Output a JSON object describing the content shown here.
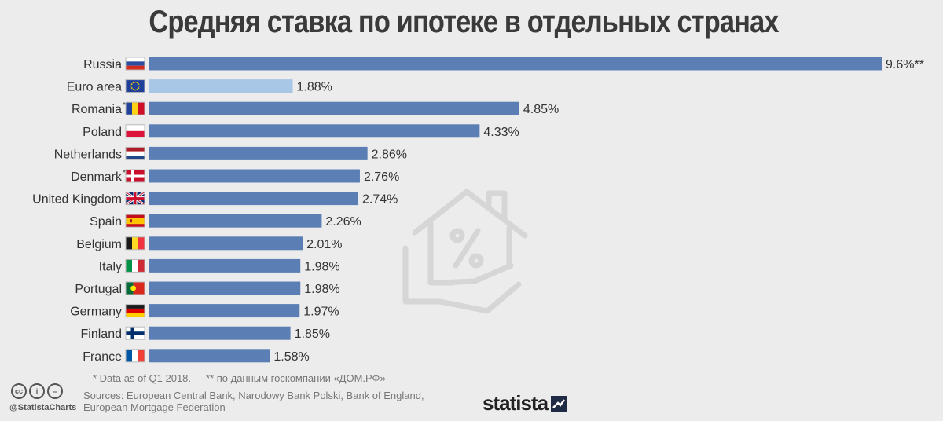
{
  "chart_data": {
    "type": "bar",
    "orientation": "horizontal",
    "title": "Средняя ставка по ипотеке в отдельных странах",
    "categories": [
      "Russia",
      "Euro area",
      "Romania",
      "Poland",
      "Netherlands",
      "Denmark",
      "United Kingdom",
      "Spain",
      "Belgium",
      "Italy",
      "Portugal",
      "Germany",
      "Finland",
      "France"
    ],
    "category_marks": [
      "",
      "",
      "*",
      "",
      "",
      "*",
      "",
      "",
      "",
      "",
      "",
      "",
      "",
      ""
    ],
    "values": [
      9.6,
      1.88,
      4.85,
      4.33,
      2.86,
      2.76,
      2.74,
      2.26,
      2.01,
      1.98,
      1.98,
      1.97,
      1.85,
      1.58
    ],
    "value_labels": [
      "9.6%**",
      "1.88%",
      "4.85%",
      "4.33%",
      "2.86%",
      "2.76%",
      "2.74%",
      "2.26%",
      "2.01%",
      "1.98%",
      "1.98%",
      "1.97%",
      "1.85%",
      "1.58%"
    ],
    "highlight": [
      false,
      true,
      false,
      false,
      false,
      false,
      false,
      false,
      false,
      false,
      false,
      false,
      false,
      false
    ],
    "flag_icons": [
      "russia-flag-icon",
      "eu-flag-icon",
      "romania-flag-icon",
      "poland-flag-icon",
      "netherlands-flag-icon",
      "denmark-flag-icon",
      "uk-flag-icon",
      "spain-flag-icon",
      "belgium-flag-icon",
      "italy-flag-icon",
      "portugal-flag-icon",
      "germany-flag-icon",
      "finland-flag-icon",
      "france-flag-icon"
    ],
    "xlim": [
      0,
      9.6
    ],
    "grid": false,
    "bar_color": "#5b7fb5",
    "highlight_color": "#a8c6e6"
  },
  "footer": {
    "note1": "* Data as of Q1 2018.",
    "note2": "** по данным госкомпании «ДОМ.РФ»",
    "sources": "Sources: European Central Bank, Narodowy Bank Polski, Bank of England, European Mortgage Federation",
    "handle": "@StatistaCharts",
    "brand": "statista",
    "cc_icons": [
      "cc-icon",
      "by-icon",
      "nd-icon"
    ],
    "cc_labels": [
      "cc",
      "i",
      "="
    ]
  }
}
